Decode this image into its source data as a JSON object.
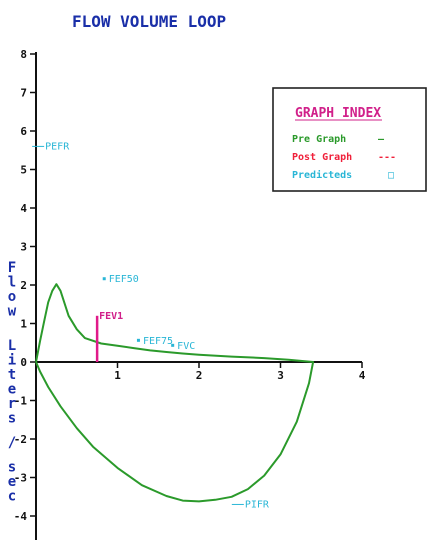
{
  "chart_data": {
    "type": "line",
    "title": "FLOW VOLUME LOOP",
    "ylabel": "Flow  Liters / sec",
    "xlabel": "",
    "xlim": [
      0,
      4
    ],
    "ylim": [
      -4.5,
      8
    ],
    "x_ticks": [
      "1",
      "2",
      "3",
      "4"
    ],
    "y_ticks": [
      "8",
      "7",
      "6",
      "5",
      "4",
      "3",
      "2",
      "1",
      "0",
      "-1",
      "-2",
      "-3",
      "-4"
    ],
    "legend": {
      "title": "GRAPH INDEX",
      "placement": "top-right",
      "items": [
        {
          "label": "Pre Graph",
          "marker": "—",
          "color": "#2b9a2b"
        },
        {
          "label": "Post Graph",
          "marker": "---",
          "color": "#f0203a"
        },
        {
          "label": "Predicteds",
          "marker": "□",
          "color": "#29b6d6"
        }
      ]
    },
    "series": [
      {
        "color": "#2b9a2b",
        "points": [
          [
            0.0,
            0.0
          ],
          [
            0.05,
            0.55
          ],
          [
            0.1,
            1.05
          ],
          [
            0.15,
            1.55
          ],
          [
            0.2,
            1.85
          ],
          [
            0.25,
            2.02
          ],
          [
            0.3,
            1.85
          ],
          [
            0.4,
            1.2
          ],
          [
            0.5,
            0.85
          ],
          [
            0.6,
            0.62
          ],
          [
            0.8,
            0.48
          ],
          [
            1.0,
            0.42
          ],
          [
            1.2,
            0.36
          ],
          [
            1.4,
            0.3
          ],
          [
            1.6,
            0.26
          ],
          [
            1.8,
            0.22
          ],
          [
            2.0,
            0.19
          ],
          [
            2.4,
            0.14
          ],
          [
            2.8,
            0.1
          ],
          [
            3.1,
            0.06
          ],
          [
            3.3,
            0.02
          ],
          [
            3.4,
            0.0
          ],
          [
            3.35,
            -0.55
          ],
          [
            3.2,
            -1.55
          ],
          [
            3.0,
            -2.4
          ],
          [
            2.8,
            -2.95
          ],
          [
            2.6,
            -3.3
          ],
          [
            2.4,
            -3.5
          ],
          [
            2.2,
            -3.58
          ],
          [
            2.0,
            -3.62
          ],
          [
            1.8,
            -3.6
          ],
          [
            1.6,
            -3.48
          ],
          [
            1.3,
            -3.2
          ],
          [
            1.0,
            -2.75
          ],
          [
            0.7,
            -2.2
          ],
          [
            0.5,
            -1.72
          ],
          [
            0.3,
            -1.15
          ],
          [
            0.15,
            -0.65
          ],
          [
            0.05,
            -0.25
          ],
          [
            0.0,
            0.0
          ]
        ]
      }
    ],
    "annotations": [
      {
        "label": "PEFR",
        "x": 0.1,
        "y": 5.6
      },
      {
        "label": "FEF50",
        "x": 0.88,
        "y": 2.15
      },
      {
        "label": "FEF75",
        "x": 1.3,
        "y": 0.55
      },
      {
        "label": "FVC",
        "x": 1.72,
        "y": 0.42
      },
      {
        "label": "PIFR",
        "x": 2.55,
        "y": -3.7
      }
    ],
    "markers": [
      {
        "label": "FEV1",
        "x": 0.75,
        "y": 1.2,
        "color": "#e01a8a"
      }
    ]
  }
}
